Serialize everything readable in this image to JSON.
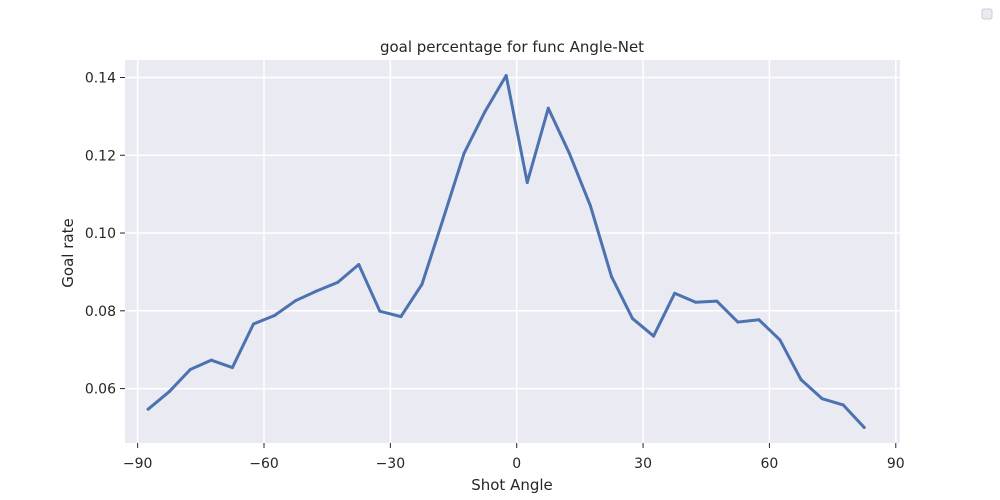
{
  "chart_data": {
    "type": "line",
    "title": "goal percentage for func Angle-Net",
    "xlabel": "Shot Angle",
    "ylabel": "Goal rate",
    "xlim": [
      -93,
      91
    ],
    "ylim": [
      0.046,
      0.1445
    ],
    "xticks": [
      -90,
      -60,
      -30,
      0,
      30,
      60,
      90
    ],
    "xtick_labels": [
      "−90",
      "−60",
      "−30",
      "0",
      "30",
      "60",
      "90"
    ],
    "yticks": [
      0.06,
      0.08,
      0.1,
      0.12,
      0.14
    ],
    "ytick_labels": [
      "0.06",
      "0.08",
      "0.10",
      "0.12",
      "0.14"
    ],
    "grid": true,
    "background_color": "#eaeaf2",
    "legend": "top-right (empty)",
    "series": [
      {
        "color": "#4c72b0",
        "x": [
          -87.5,
          -82.5,
          -77.5,
          -72.5,
          -67.5,
          -62.5,
          -57.5,
          -52.5,
          -47.5,
          -42.5,
          -37.5,
          -32.5,
          -27.5,
          -22.5,
          -17.5,
          -12.5,
          -7.5,
          -2.5,
          2.5,
          7.5,
          12.5,
          17.5,
          22.5,
          27.5,
          32.5,
          37.5,
          42.5,
          47.5,
          52.5,
          57.5,
          62.5,
          67.5,
          72.5,
          77.5,
          82.5
        ],
        "y": [
          0.0547,
          0.0592,
          0.0649,
          0.0673,
          0.0654,
          0.0766,
          0.0788,
          0.0826,
          0.0851,
          0.0873,
          0.0919,
          0.0799,
          0.0785,
          0.0868,
          0.1035,
          0.1205,
          0.1313,
          0.1405,
          0.113,
          0.1321,
          0.1205,
          0.107,
          0.0888,
          0.078,
          0.0735,
          0.0845,
          0.0822,
          0.0825,
          0.0771,
          0.0777,
          0.0725,
          0.0623,
          0.0574,
          0.0558,
          0.05
        ]
      }
    ]
  }
}
